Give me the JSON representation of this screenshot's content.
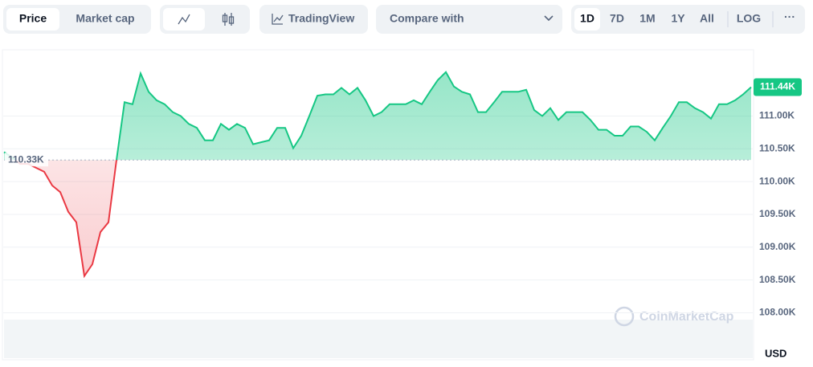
{
  "toolbar": {
    "price": "Price",
    "market_cap": "Market cap",
    "tradingview": "TradingView",
    "compare": "Compare with",
    "ranges": [
      "1D",
      "7D",
      "1M",
      "1Y",
      "All"
    ],
    "log": "LOG",
    "more": "···"
  },
  "chart_data": {
    "type": "line",
    "unit": "USD",
    "watermark": "CoinMarketCap",
    "values": [
      110450,
      110370,
      110270,
      110270,
      110210,
      110150,
      109940,
      109840,
      109540,
      109380,
      108560,
      108740,
      109230,
      109380,
      110330,
      111210,
      111180,
      111650,
      111370,
      111240,
      111180,
      111060,
      111000,
      110880,
      110820,
      110630,
      110630,
      110880,
      110790,
      110880,
      110820,
      110570,
      110600,
      110630,
      110820,
      110820,
      110510,
      110700,
      111000,
      111310,
      111330,
      111330,
      111430,
      111330,
      111430,
      111240,
      111000,
      111060,
      111180,
      111180,
      111180,
      111240,
      111180,
      111370,
      111550,
      111670,
      111450,
      111370,
      111330,
      111060,
      111060,
      111210,
      111370,
      111370,
      111370,
      111400,
      111090,
      111000,
      111120,
      110940,
      111060,
      111060,
      111060,
      110940,
      110790,
      110790,
      110700,
      110700,
      110840,
      110840,
      110760,
      110630,
      110820,
      111000,
      111210,
      111210,
      111120,
      111060,
      110960,
      111180,
      111180,
      111240,
      111330,
      111440
    ],
    "baseline": {
      "value": 110330,
      "label": "110.33K"
    },
    "last": {
      "value": 111440,
      "label": "111.44K"
    },
    "up_color": "#16c784",
    "down_color": "#ea3943",
    "ylim": [
      107320,
      112010
    ],
    "yticks": [
      {
        "value": 108000,
        "label": "108.00K"
      },
      {
        "value": 108500,
        "label": "108.50K"
      },
      {
        "value": 109000,
        "label": "109.00K"
      },
      {
        "value": 109500,
        "label": "109.50K"
      },
      {
        "value": 110000,
        "label": "110.00K"
      },
      {
        "value": 110500,
        "label": "110.50K"
      },
      {
        "value": 111000,
        "label": "111.00K"
      }
    ],
    "grid": true
  }
}
